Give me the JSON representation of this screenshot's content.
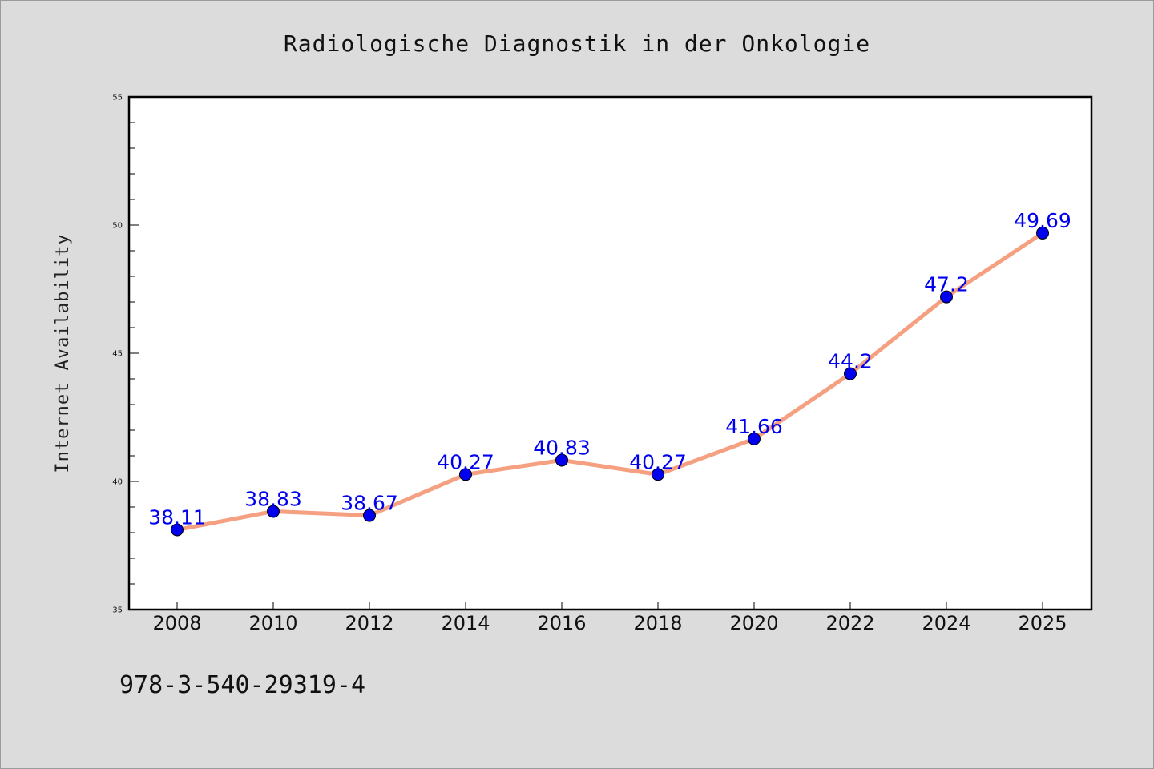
{
  "footer": {
    "isbn": "978-3-540-29319-4"
  },
  "colors": {
    "background": "#dcdcdc",
    "plot_background": "#ffffff",
    "line": "#f5a080",
    "marker": "#0000ee",
    "data_label": "#0000ee"
  },
  "chart_data": {
    "type": "line",
    "title": "Radiologische Diagnostik in der Onkologie",
    "xlabel": "",
    "ylabel": "Internet Availability",
    "categories": [
      "2008",
      "2010",
      "2012",
      "2014",
      "2016",
      "2018",
      "2020",
      "2022",
      "2024",
      "2025"
    ],
    "series": [
      {
        "values": [
          38.11,
          38.83,
          38.67,
          40.27,
          40.83,
          40.27,
          41.66,
          44.2,
          47.2,
          49.69
        ],
        "labels": [
          "38.11",
          "38.83",
          "38.67",
          "40.27",
          "40.83",
          "40.27",
          "41.66",
          "44.2",
          "47.2",
          "49.69"
        ]
      }
    ],
    "ylim": [
      35,
      55
    ],
    "yticks": [
      "35",
      "40",
      "45",
      "50",
      "55"
    ],
    "grid": false,
    "legend": "none"
  }
}
